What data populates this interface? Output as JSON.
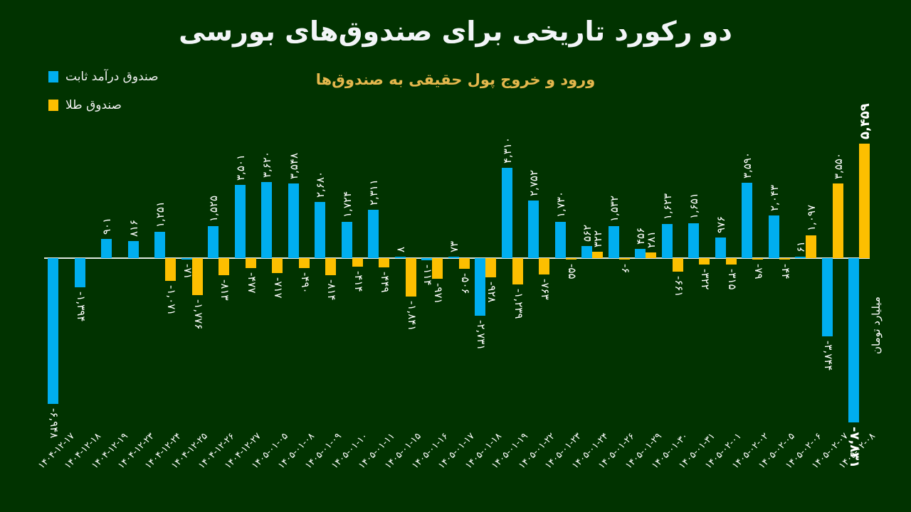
{
  "header": {
    "title": "دو رکورد تاریخی برای صندوق‌های بورسی",
    "subtitle": "ورود و خروج پول حقیقی به صندوق‌ها"
  },
  "legend": [
    {
      "label": "صندوق درآمد ثابت",
      "color": "#00aeef"
    },
    {
      "label": "صندوق طلا",
      "color": "#fdbf00"
    }
  ],
  "unit_label": "میلیارد تومان",
  "colors": {
    "background": "#013300",
    "fixed_income": "#00aeef",
    "gold": "#fdbf00",
    "subtitle": "#e5b84d"
  },
  "chart_data": {
    "type": "bar",
    "title": "دو رکورد تاریخی برای صندوق‌های بورسی",
    "subtitle": "ورود و خروج پول حقیقی به صندوق‌ها",
    "xlabel": "",
    "ylabel": "میلیارد تومان",
    "legend_position": "top-left",
    "grid": false,
    "ylim": [
      -8000,
      6000
    ],
    "categories": [
      "۱۴۰۴-۱۲-۱۷",
      "۱۴۰۴-۱۲-۱۸",
      "۱۴۰۴-۱۲-۱۹",
      "۱۴۰۴-۱۲-۲۳",
      "۱۴۰۴-۱۲-۲۴",
      "۱۴۰۴-۱۲-۲۵",
      "۱۴۰۴-۱۲-۲۶",
      "۱۴۰۴-۱۲-۲۷",
      "۱۴۰۵-۰۱-۰۵",
      "۱۴۰۵-۰۱-۰۸",
      "۱۴۰۵-۰۱-۰۹",
      "۱۴۰۵-۰۱-۱۰",
      "۱۴۰۵-۰۱-۱۱",
      "۱۴۰۵-۰۱-۱۵",
      "۱۴۰۵-۰۱-۱۶",
      "۱۴۰۵-۰۱-۱۷",
      "۱۴۰۵-۰۱-۱۸",
      "۱۴۰۵-۰۱-۱۹",
      "۱۴۰۵-۰۱-۲۲",
      "۱۴۰۵-۰۱-۲۳",
      "۱۴۰۵-۰۱-۲۴",
      "۱۴۰۵-۰۱-۲۶",
      "۱۴۰۵-۰۱-۲۹",
      "۱۴۰۵-۰۱-۳۰",
      "۱۴۰۵-۰۱-۳۱",
      "۱۴۰۵-۰۲-۰۱",
      "۱۴۰۵-۰۲-۰۲",
      "۱۴۰۵-۰۲-۰۵",
      "۱۴۰۵-۰۲-۰۶",
      "۱۴۰۵-۰۲-۰۷",
      "۱۴۰۵-۰۲-۰۸"
    ],
    "series": [
      {
        "name": "صندوق درآمد ثابت",
        "color": "#00aeef",
        "values": [
          -6948,
          -1394,
          901,
          816,
          1251,
          -71,
          1525,
          3501,
          3620,
          3548,
          2680,
          1724,
          2311,
          8,
          -114,
          73,
          -2731,
          4310,
          2752,
          1730,
          562,
          1532,
          456,
          1623,
          1651,
          976,
          3590,
          2043,
          61,
          -3744,
          -7831
        ],
        "labels": [
          "-۶,۹۴۸",
          "-۱,۳۹۴",
          "۹۰۱",
          "۸۱۶",
          "۱,۲۵۱",
          "-۷۱",
          "۱,۵۲۵",
          "۳,۵۰۱",
          "۳,۶۲۰",
          "۳,۵۴۸",
          "۲,۶۸۰",
          "۱,۷۲۴",
          "۲,۳۱۱",
          "۸",
          "-۱۱۴",
          "۷۳",
          "-۲,۷۳۱",
          "۴,۳۱۰",
          "۲,۷۵۲",
          "۱,۷۳۰",
          "۵۶۲",
          "۱,۵۳۲",
          "۴۵۶",
          "۱,۶۲۳",
          "۱,۶۵۱",
          "۹۷۶",
          "۳,۵۹۰",
          "۲,۰۴۳",
          "۶۱",
          "-۳,۷۴۴",
          "-۷,۸۳۱"
        ]
      },
      {
        "name": "صندوق طلا",
        "color": "#fdbf00",
        "values": [
          null,
          null,
          null,
          null,
          -1071,
          -1776,
          -813,
          -477,
          -717,
          -490,
          -814,
          -414,
          -449,
          -1841,
          -971,
          -506,
          -928,
          -1239,
          -763,
          -55,
          322,
          -6,
          281,
          -661,
          -322,
          -315,
          -79,
          -44,
          1097,
          3550,
          5459
        ],
        "labels": [
          "",
          "",
          "",
          "",
          "-۱,۰۷۱",
          "-۱,۷۷۶",
          "-۸۱۳",
          "-۴۷۷",
          "-۷۱۷",
          "-۴۹۰",
          "-۸۱۴",
          "-۴۱۴",
          "-۴۴۹",
          "-۱,۸۴۱",
          "-۹۷۱",
          "-۵۰۶",
          "-۹۲۸",
          "-۱,۲۳۹",
          "-۷۶۳",
          "-۵۵",
          "۳۲۲",
          "-۶",
          "۲۸۱",
          "-۶۶۱",
          "-۳۲۲",
          "-۳۱۵",
          "-۷۹",
          "-۴۴",
          "۱,۰۹۷",
          "۳,۵۵۰",
          "۵,۴۵۹"
        ]
      }
    ]
  }
}
